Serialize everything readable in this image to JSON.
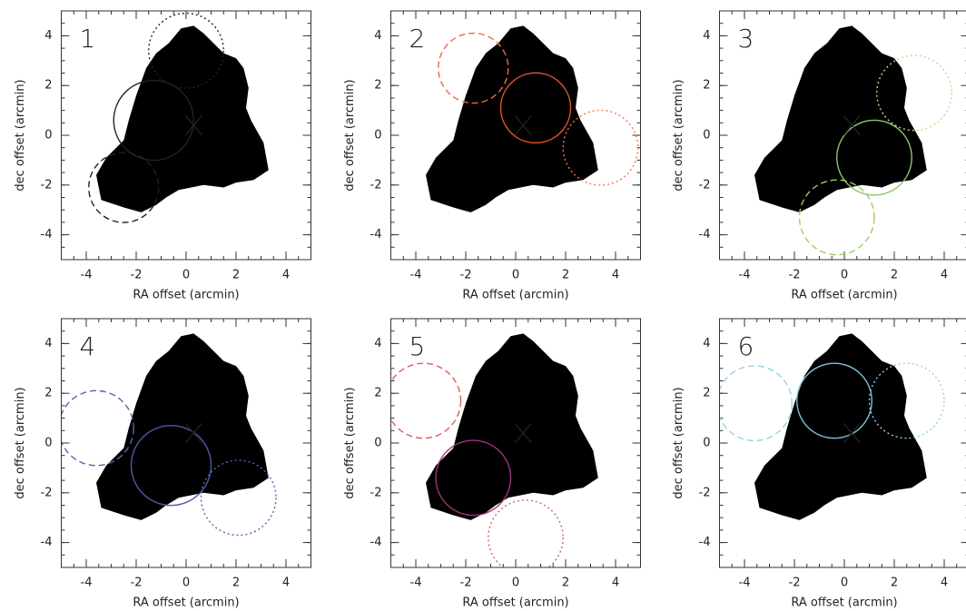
{
  "chart_data": [
    {
      "type": "circles",
      "label": "1",
      "xlabel": "RA offset (arcmin)",
      "ylabel": "dec offset (arcmin)",
      "xlim": [
        -5,
        5
      ],
      "ylim": [
        -5,
        5
      ],
      "xticks": [
        -4,
        -2,
        0,
        2,
        4
      ],
      "yticks": [
        -4,
        -2,
        0,
        2,
        4
      ],
      "marker": {
        "x": 0.3,
        "y": 0.4
      },
      "circles": [
        {
          "x": -1.3,
          "y": 0.6,
          "r": 1.6,
          "style": "solid",
          "color": "#222222"
        },
        {
          "x": 0.0,
          "y": 3.4,
          "r": 1.5,
          "style": "dotted",
          "color": "#222222"
        },
        {
          "x": -2.5,
          "y": -2.1,
          "r": 1.4,
          "style": "dashed",
          "color": "#222222"
        }
      ]
    },
    {
      "type": "circles",
      "label": "2",
      "xlabel": "RA offset (arcmin)",
      "ylabel": "dec offset (arcmin)",
      "xlim": [
        -5,
        5
      ],
      "ylim": [
        -5,
        5
      ],
      "xticks": [
        -4,
        -2,
        0,
        2,
        4
      ],
      "yticks": [
        -4,
        -2,
        0,
        2,
        4
      ],
      "marker": {
        "x": 0.3,
        "y": 0.4
      },
      "circles": [
        {
          "x": 0.8,
          "y": 1.1,
          "r": 1.4,
          "style": "solid",
          "color": "#e2582f"
        },
        {
          "x": -1.7,
          "y": 2.7,
          "r": 1.4,
          "style": "dashed",
          "color": "#ec6a45"
        },
        {
          "x": 3.4,
          "y": -0.5,
          "r": 1.5,
          "style": "dotted",
          "color": "#ef7a50"
        }
      ]
    },
    {
      "type": "circles",
      "label": "3",
      "xlabel": "RA offset (arcmin)",
      "ylabel": "dec offset (arcmin)",
      "xlim": [
        -5,
        5
      ],
      "ylim": [
        -5,
        5
      ],
      "xticks": [
        -4,
        -2,
        0,
        2,
        4
      ],
      "yticks": [
        -4,
        -2,
        0,
        2,
        4
      ],
      "marker": {
        "x": 0.3,
        "y": 0.4
      },
      "circles": [
        {
          "x": 1.2,
          "y": -0.9,
          "r": 1.5,
          "style": "solid",
          "color": "#8cc66a"
        },
        {
          "x": 2.8,
          "y": 1.7,
          "r": 1.5,
          "style": "dotted",
          "color": "#c4d98a"
        },
        {
          "x": -0.3,
          "y": -3.3,
          "r": 1.5,
          "style": "dashed",
          "color": "#9ccf62"
        }
      ]
    },
    {
      "type": "circles",
      "label": "4",
      "xlabel": "RA offset (arcmin)",
      "ylabel": "dec offset (arcmin)",
      "xlim": [
        -5,
        5
      ],
      "ylim": [
        -5,
        5
      ],
      "xticks": [
        -4,
        -2,
        0,
        2,
        4
      ],
      "yticks": [
        -4,
        -2,
        0,
        2,
        4
      ],
      "marker": {
        "x": 0.3,
        "y": 0.4
      },
      "circles": [
        {
          "x": -0.6,
          "y": -0.9,
          "r": 1.6,
          "style": "solid",
          "color": "#4e5aa6"
        },
        {
          "x": -3.6,
          "y": 0.6,
          "r": 1.5,
          "style": "dashed",
          "color": "#5865ab"
        },
        {
          "x": 2.1,
          "y": -2.2,
          "r": 1.5,
          "style": "dotted",
          "color": "#5a63b0"
        }
      ]
    },
    {
      "type": "circles",
      "label": "5",
      "xlabel": "RA offset (arcmin)",
      "ylabel": "dec offset (arcmin)",
      "xlim": [
        -5,
        5
      ],
      "ylim": [
        -5,
        5
      ],
      "xticks": [
        -4,
        -2,
        0,
        2,
        4
      ],
      "yticks": [
        -4,
        -2,
        0,
        2,
        4
      ],
      "marker": {
        "x": 0.3,
        "y": 0.4
      },
      "circles": [
        {
          "x": -1.7,
          "y": -1.4,
          "r": 1.5,
          "style": "solid",
          "color": "#a0357a"
        },
        {
          "x": -3.7,
          "y": 1.7,
          "r": 1.5,
          "style": "dashed",
          "color": "#d9605a"
        },
        {
          "x": 0.4,
          "y": -3.8,
          "r": 1.5,
          "style": "dotted",
          "color": "#d9605a"
        }
      ]
    },
    {
      "type": "circles",
      "label": "6",
      "xlabel": "RA offset (arcmin)",
      "ylabel": "dec offset (arcmin)",
      "xlim": [
        -5,
        5
      ],
      "ylim": [
        -5,
        5
      ],
      "xticks": [
        -4,
        -2,
        0,
        2,
        4
      ],
      "yticks": [
        -4,
        -2,
        0,
        2,
        4
      ],
      "marker": {
        "x": 0.3,
        "y": 0.4
      },
      "circles": [
        {
          "x": -0.4,
          "y": 1.7,
          "r": 1.5,
          "style": "solid",
          "color": "#7cc3d8"
        },
        {
          "x": -3.6,
          "y": 1.6,
          "r": 1.5,
          "style": "dashed",
          "color": "#95d2e6"
        },
        {
          "x": 2.5,
          "y": 1.7,
          "r": 1.5,
          "style": "dotted",
          "color": "#95d2e6"
        }
      ]
    }
  ]
}
